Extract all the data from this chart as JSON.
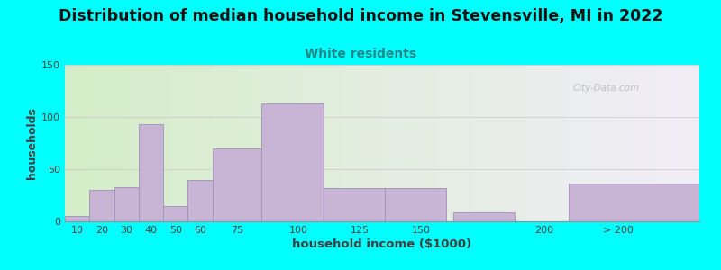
{
  "title": "Distribution of median household income in Stevensville, MI in 2022",
  "subtitle": "White residents",
  "xlabel": "household income ($1000)",
  "ylabel": "households",
  "background_color": "#00FFFF",
  "bar_color": "#c8b4d4",
  "bar_edge_color": "#a090b8",
  "title_fontsize": 12.5,
  "subtitle_fontsize": 10,
  "subtitle_color": "#208888",
  "xlabel_fontsize": 9.5,
  "ylabel_fontsize": 9,
  "tick_label_color": "#404040",
  "values": [
    5,
    30,
    33,
    93,
    15,
    40,
    70,
    113,
    32,
    32,
    9,
    36
  ],
  "bar_lefts": [
    5,
    15,
    25,
    35,
    45,
    55,
    65,
    85,
    110,
    135,
    163,
    210
  ],
  "bar_widths": [
    10,
    10,
    10,
    10,
    10,
    10,
    20,
    25,
    25,
    25,
    25,
    60
  ],
  "tick_positions": [
    10,
    20,
    30,
    40,
    50,
    60,
    75,
    100,
    125,
    150,
    200,
    230
  ],
  "tick_labels": [
    "10",
    "20",
    "30",
    "40",
    "50",
    "60",
    "75",
    "100",
    "125",
    "150",
    "200",
    "> 200"
  ],
  "xlim": [
    5,
    263
  ],
  "ylim": [
    0,
    150
  ],
  "yticks": [
    0,
    50,
    100,
    150
  ],
  "grid_color": "#c8c8c8",
  "watermark": "City-Data.com"
}
